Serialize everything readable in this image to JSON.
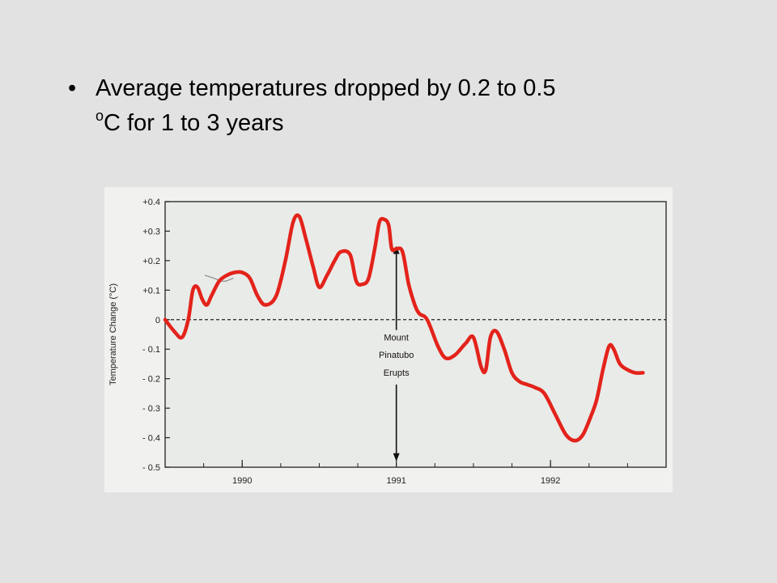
{
  "slide": {
    "bullet_symbol": "•",
    "text_line1": "Average temperatures dropped by 0.2 to 0.5",
    "text_sup": "o",
    "text_line2": "C for 1 to 3 years"
  },
  "chart_data": {
    "type": "line",
    "title": "",
    "xlabel": "",
    "ylabel": "Temperature Change (°C)",
    "xlim": [
      1989.5,
      1992.75
    ],
    "ylim": [
      -0.5,
      0.4
    ],
    "x_ticks": [
      1990,
      1991,
      1992
    ],
    "x_tick_labels": [
      "1990",
      "1991",
      "1992"
    ],
    "y_ticks": [
      0.4,
      0.3,
      0.2,
      0.1,
      0,
      -0.1,
      -0.2,
      -0.3,
      -0.4,
      -0.5
    ],
    "y_tick_labels": [
      "+0.4",
      "+0.3",
      "+0.2",
      "+0.1",
      "0",
      "- 0.1",
      "- 0.2",
      "- 0.3",
      "- 0.4",
      "- 0.5"
    ],
    "zero_line": "dashed",
    "grid": false,
    "series": [
      {
        "color": "#e3231b",
        "x": [
          1989.5,
          1989.56,
          1989.61,
          1989.65,
          1989.68,
          1989.71,
          1989.74,
          1989.77,
          1989.8,
          1989.85,
          1989.9,
          1989.95,
          1990.0,
          1990.05,
          1990.1,
          1990.15,
          1990.22,
          1990.28,
          1990.33,
          1990.37,
          1990.41,
          1990.46,
          1990.5,
          1990.55,
          1990.6,
          1990.64,
          1990.7,
          1990.74,
          1990.78,
          1990.82,
          1990.86,
          1990.89,
          1990.92,
          1990.95,
          1990.97,
          1991.0,
          1991.04,
          1991.08,
          1991.12,
          1991.15,
          1991.2,
          1991.27,
          1991.32,
          1991.38,
          1991.45,
          1991.5,
          1991.55,
          1991.58,
          1991.61,
          1991.65,
          1991.7,
          1991.75,
          1991.8,
          1991.85,
          1991.9,
          1991.96,
          1992.03,
          1992.1,
          1992.16,
          1992.21,
          1992.26,
          1992.3,
          1992.34,
          1992.38,
          1992.41,
          1992.45,
          1992.5,
          1992.55,
          1992.6
        ],
        "values": [
          0.0,
          -0.04,
          -0.06,
          0.0,
          0.1,
          0.11,
          0.07,
          0.05,
          0.08,
          0.13,
          0.15,
          0.16,
          0.16,
          0.14,
          0.08,
          0.05,
          0.08,
          0.2,
          0.33,
          0.35,
          0.28,
          0.18,
          0.11,
          0.15,
          0.2,
          0.23,
          0.22,
          0.13,
          0.12,
          0.14,
          0.24,
          0.33,
          0.34,
          0.32,
          0.24,
          0.24,
          0.23,
          0.12,
          0.05,
          0.02,
          0.0,
          -0.09,
          -0.13,
          -0.12,
          -0.08,
          -0.06,
          -0.16,
          -0.17,
          -0.06,
          -0.04,
          -0.1,
          -0.18,
          -0.21,
          -0.22,
          -0.23,
          -0.25,
          -0.32,
          -0.39,
          -0.41,
          -0.39,
          -0.33,
          -0.27,
          -0.17,
          -0.09,
          -0.1,
          -0.15,
          -0.17,
          -0.18,
          -0.18
        ]
      },
      {
        "color": "#8a8a8a",
        "x": [
          1989.76,
          1989.82,
          1989.88,
          1989.94
        ],
        "values": [
          0.15,
          0.14,
          0.13,
          0.14
        ]
      }
    ],
    "annotations": [
      {
        "text": "Mount",
        "x": 1991.0,
        "y": -0.07
      },
      {
        "text": "Pinatubo",
        "x": 1991.0,
        "y": -0.13
      },
      {
        "text": "Erupts",
        "x": 1991.0,
        "y": -0.19
      }
    ],
    "arrow": {
      "x": 1991.0,
      "y_from": 0.25,
      "y_to": -0.48,
      "direction": "both"
    }
  }
}
